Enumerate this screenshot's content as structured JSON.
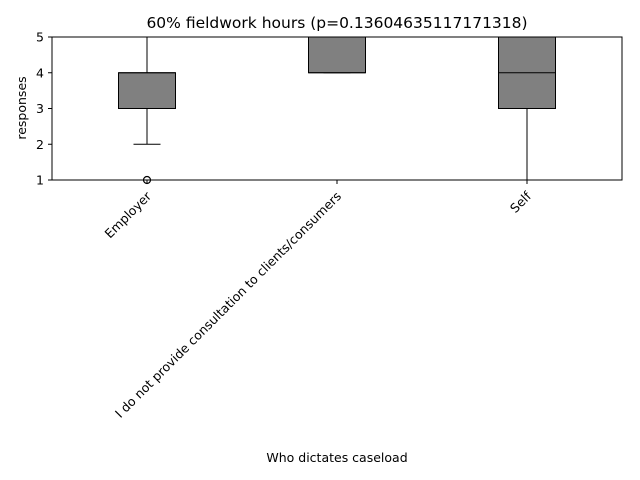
{
  "chart_data": {
    "type": "box",
    "title": "60% fieldwork hours (p=0.13604635117171318)",
    "xlabel": "Who dictates caseload",
    "ylabel": "responses",
    "ylim": [
      1,
      5
    ],
    "yticks": [
      1,
      2,
      3,
      4,
      5
    ],
    "grid": false,
    "categories": [
      "Employer",
      "I do not provide consultation to clients/consumers",
      "Self"
    ],
    "boxes": [
      {
        "whisker_low": 2,
        "q1": 3,
        "median": 4,
        "q3": 4,
        "whisker_high": 5,
        "outliers": [
          1
        ]
      },
      {
        "whisker_low": 4,
        "q1": 4,
        "median": 4,
        "q3": 5,
        "whisker_high": 5,
        "outliers": []
      },
      {
        "whisker_low": 1,
        "q1": 3,
        "median": 4,
        "q3": 5,
        "whisker_high": 5,
        "outliers": []
      }
    ],
    "colors": {
      "box_fill": "#808080",
      "line": "#000000"
    }
  }
}
